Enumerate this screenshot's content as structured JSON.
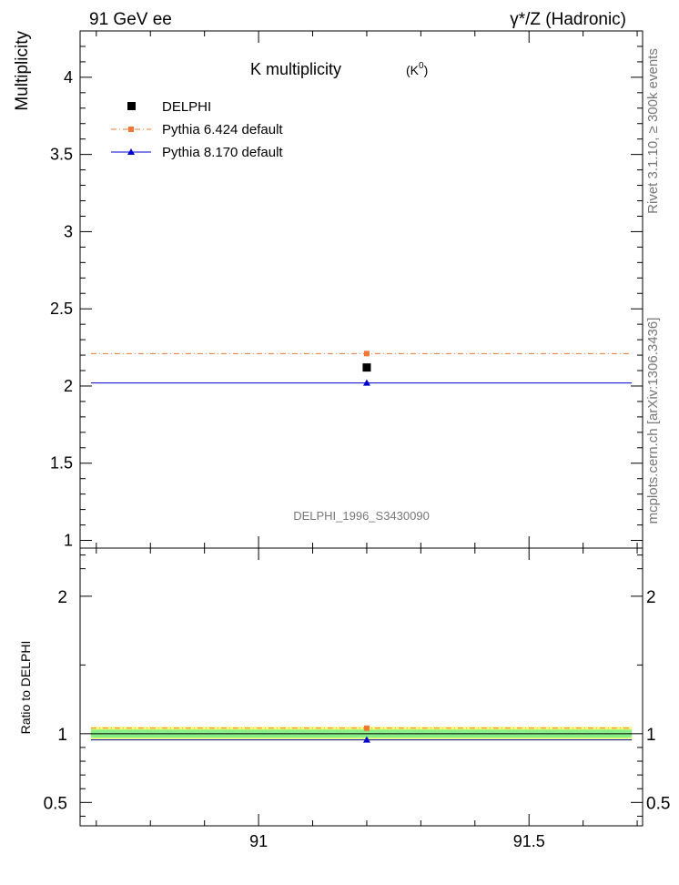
{
  "header": {
    "energy": "91 GeV ee",
    "process": "γ*/Z (Hadronic)"
  },
  "side_labels": {
    "rivet": "Rivet 3.1.10, ≥ 300k events",
    "source": "mcplots.cern.ch [arXiv:1306.3436]"
  },
  "analysis_id": "DELPHI_1996_S3430090",
  "chart_data": [
    {
      "type": "scatter",
      "title": "K multiplicity",
      "title_sup_base": "(K",
      "title_sup": "0",
      "title_sup_close": ")",
      "xlabel": "",
      "ylabel": "Multiplicity",
      "xlim": [
        90.67,
        91.71
      ],
      "ylim": [
        0.95,
        4.3
      ],
      "x_ticks": [
        91,
        91.5
      ],
      "x_tick_labels": [
        "91",
        "91.5"
      ],
      "y_ticks": [
        1,
        1.5,
        2,
        2.5,
        3,
        3.5,
        4
      ],
      "y_tick_labels": [
        "1",
        "1.5",
        "2",
        "2.5",
        "3",
        "3.5",
        "4"
      ],
      "bin": [
        90.69,
        91.69
      ],
      "x_center": 91.2,
      "legend": [
        {
          "label": "DELPHI",
          "color": "#000000",
          "marker": "square"
        },
        {
          "label": "Pythia 6.424 default",
          "color": "#ee7733",
          "marker": "square",
          "line": "dashdot"
        },
        {
          "label": "Pythia 8.170 default",
          "color": "#0000cc",
          "marker": "triangle",
          "line": "solid"
        }
      ],
      "series": [
        {
          "name": "DELPHI",
          "x": [
            91.2
          ],
          "y": [
            2.12
          ]
        },
        {
          "name": "Pythia 6.424 default",
          "x": [
            91.2
          ],
          "y": [
            2.21
          ]
        },
        {
          "name": "Pythia 8.170 default",
          "x": [
            91.2
          ],
          "y": [
            2.02
          ]
        }
      ]
    },
    {
      "type": "scatter",
      "title": "",
      "xlabel": "",
      "ylabel": "Ratio to DELPHI",
      "xlim": [
        90.67,
        91.71
      ],
      "ylim": [
        0.33,
        2.35
      ],
      "y_ticks": [
        0.5,
        1,
        2
      ],
      "y_tick_labels": [
        "0.5",
        "1",
        "2"
      ],
      "band": {
        "yellow": [
          0.95,
          1.05
        ],
        "green": [
          0.97,
          1.03
        ]
      },
      "series": [
        {
          "name": "Pythia 6.424 default",
          "x": [
            91.2
          ],
          "y": [
            1.04
          ]
        },
        {
          "name": "Pythia 8.170 default",
          "x": [
            91.2
          ],
          "y": [
            0.955
          ]
        }
      ]
    }
  ]
}
